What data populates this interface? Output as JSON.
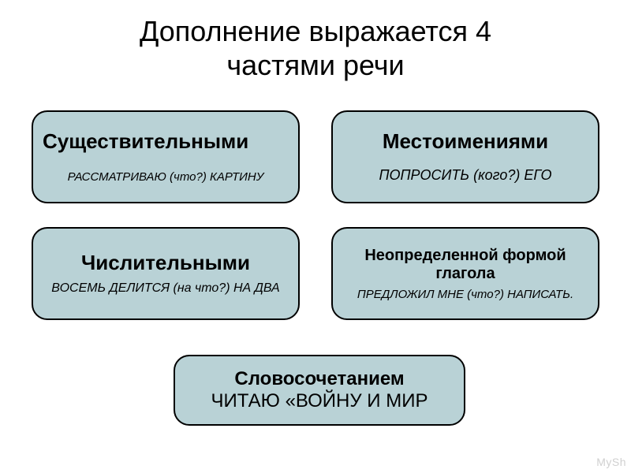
{
  "title": {
    "line1": "Дополнение выражается 4",
    "line2": "частями речи"
  },
  "boxes": [
    {
      "heading": "Существительными",
      "example": "РАССМАТРИВАЮ (что?) КАРТИНУ",
      "bg": "#b9d2d6",
      "heading_fontsize": 26,
      "example_fontsize": 15,
      "heading_align": "flex-start",
      "gap": 22
    },
    {
      "heading": "Местоимениями",
      "example": "ПОПРОСИТЬ (кого?) ЕГО",
      "bg": "#b9d2d6",
      "heading_fontsize": 26,
      "example_fontsize": 18,
      "heading_align": "center",
      "gap": 18
    },
    {
      "heading": "Числительными",
      "example": "ВОСЕМЬ ДЕЛИТСЯ (на что?) НА ДВА",
      "bg": "#b9d2d6",
      "heading_fontsize": 26,
      "example_fontsize": 16,
      "heading_align": "center",
      "gap": 8
    },
    {
      "heading": "Неопределенной формой глагола",
      "example": "ПРЕДЛОЖИЛ МНЕ (что?) НАПИСАТЬ.",
      "bg": "#b9d2d6",
      "heading_fontsize": 20,
      "example_fontsize": 15,
      "heading_align": "center",
      "gap": 6
    }
  ],
  "bottom": {
    "heading": "Словосочетанием",
    "example": "ЧИТАЮ «ВОЙНУ И МИР",
    "bg": "#b9d2d6"
  },
  "watermark": "MySh",
  "colors": {
    "box_bg": "#b9d2d6",
    "border": "#000000",
    "page_bg": "#ffffff"
  }
}
